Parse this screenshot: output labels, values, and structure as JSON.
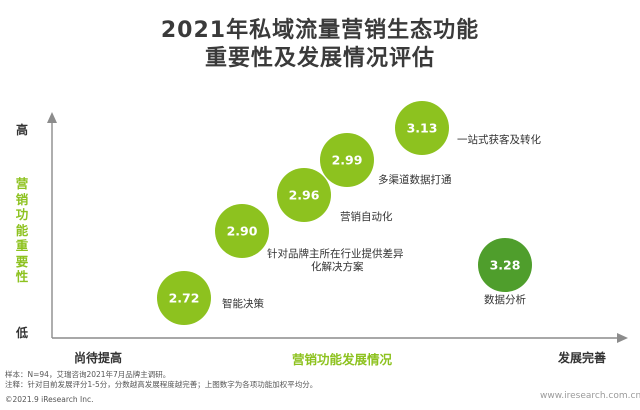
{
  "title": {
    "line1": "2021年私域流量营销生态功能",
    "line2": "重要性及发展情况评估"
  },
  "colors": {
    "bubble_light": "#8dc21f",
    "bubble_dark": "#4f9e2c",
    "axis_label": "#8dc21f",
    "axis_line": "#8c8c8c"
  },
  "chart_data": {
    "type": "scatter",
    "title": "2021年私域流量营销生态功能重要性及发展情况评估",
    "xlabel": "营销功能发展情况",
    "ylabel": "营销功能重要性",
    "x_ends": [
      "尚待提高",
      "发展完善"
    ],
    "y_ends": [
      "低",
      "高"
    ],
    "grid": false,
    "points": [
      {
        "value": 2.72,
        "labels": [
          "智能决策"
        ]
      },
      {
        "value": 2.9,
        "labels": [
          "针对品牌主所在行业提供差异",
          "化解决方案"
        ]
      },
      {
        "value": 2.96,
        "labels": [
          "营销自动化"
        ]
      },
      {
        "value": 2.99,
        "labels": [
          "多渠道数据打通"
        ]
      },
      {
        "value": 3.13,
        "labels": [
          "一站式获客及转化"
        ]
      },
      {
        "value": 3.28,
        "labels": [
          "数据分析"
        ]
      }
    ]
  },
  "footer": {
    "sample": "样本：N=94，艾瑞咨询2021年7月品牌主调研。",
    "note": "注释：针对目前发展评分1-5分，分数越高发展程度越完善；上图数字为各项功能加权平均分。",
    "source": "©2021.9 iResearch Inc.",
    "watermark": "www.iresearch.com.cn"
  }
}
